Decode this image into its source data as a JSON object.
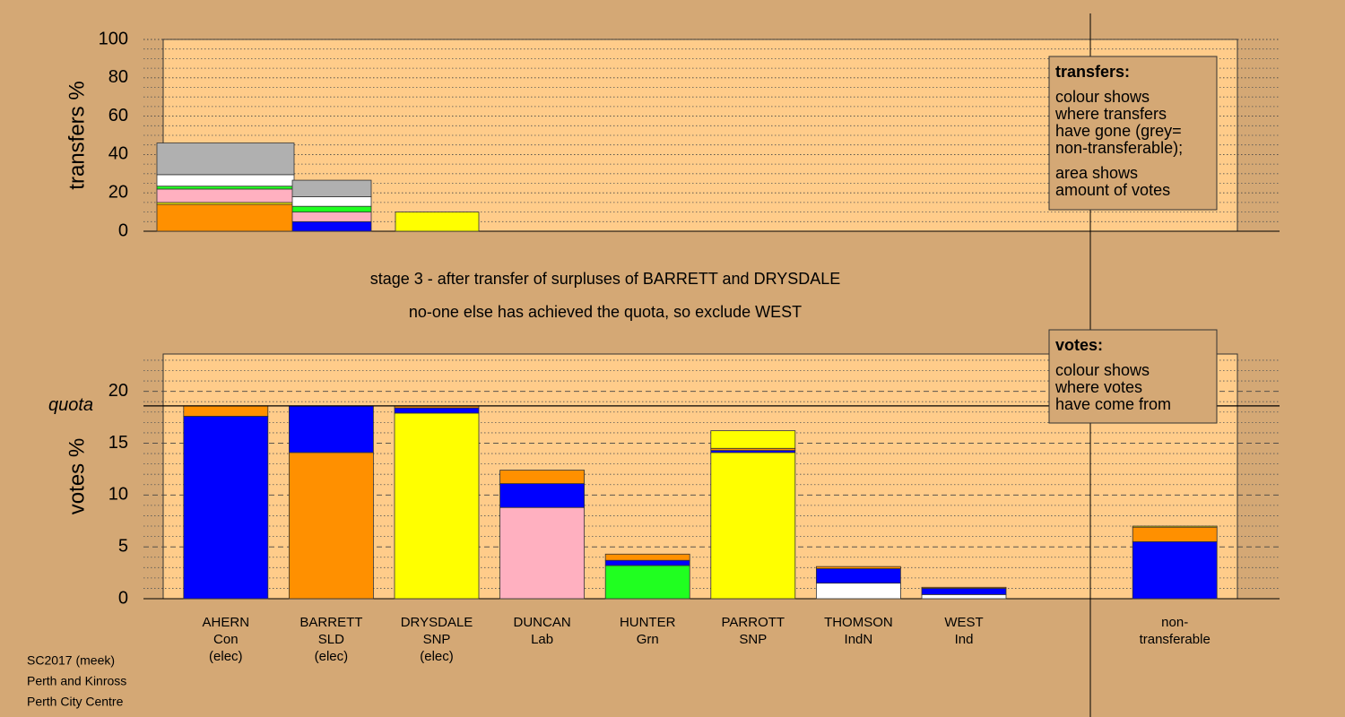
{
  "title_lines": [
    "stage 3 - after transfer of surpluses of BARRETT and DRYSDALE",
    "no-one else has achieved the quota, so exclude WEST"
  ],
  "transfers_note": {
    "heading": "transfers:",
    "paragraphs": [
      [
        "colour shows",
        "where transfers",
        "have gone (grey=",
        "non-transferable);"
      ],
      [
        "area shows",
        "amount of votes"
      ]
    ]
  },
  "votes_note": {
    "heading": "votes:",
    "paragraphs": [
      [
        "colour shows",
        "where votes",
        "have come from"
      ]
    ]
  },
  "footer": [
    "SC2017 (meek)",
    "Perth and Kinross",
    "Perth City Centre"
  ],
  "chart_data": [
    {
      "type": "bar",
      "stacked": true,
      "ylabel": "transfers %",
      "ylim": [
        0,
        100
      ],
      "yticks": [
        0,
        20,
        40,
        60,
        80,
        100
      ],
      "minor_yticks": [
        5,
        10,
        15,
        25,
        30,
        35,
        45,
        50,
        55,
        65,
        70,
        75,
        85,
        90,
        95
      ],
      "series": [
        {
          "color": "#0000ff",
          "values": [
            0,
            5,
            0
          ]
        },
        {
          "color": "#ff9000",
          "values": [
            14,
            0,
            0
          ]
        },
        {
          "color": "#ffff00",
          "values": [
            1,
            0,
            10
          ]
        },
        {
          "color": "#ffb0c0",
          "values": [
            7,
            5,
            0
          ]
        },
        {
          "color": "#20ff20",
          "values": [
            1.5,
            3,
            0
          ]
        },
        {
          "color": "#ffffff",
          "values": [
            6,
            5,
            0
          ]
        },
        {
          "color": "#b0b0b0",
          "values": [
            16.5,
            8.6,
            0
          ]
        }
      ]
    },
    {
      "type": "bar",
      "stacked": true,
      "ylabel": "votes %",
      "categories": [
        [
          "AHERN",
          "Con",
          "(elec)"
        ],
        [
          "BARRETT",
          "SLD",
          "(elec)"
        ],
        [
          "DRYSDALE",
          "SNP",
          "(elec)"
        ],
        [
          "DUNCAN",
          "Lab"
        ],
        [
          "HUNTER",
          "Grn"
        ],
        [
          "PARROTT",
          "SNP"
        ],
        [
          "THOMSON",
          "IndN"
        ],
        [
          "WEST",
          "Ind"
        ],
        null,
        [
          "non-",
          "transferable"
        ]
      ],
      "ylim": [
        0,
        23.6
      ],
      "yticks": [
        0,
        5,
        10,
        15,
        20
      ],
      "minor_yticks": [
        1,
        2,
        3,
        4,
        6,
        7,
        8,
        9,
        11,
        12,
        13,
        14,
        16,
        17,
        18,
        19,
        21,
        22,
        23
      ],
      "quota": 18.6,
      "quota_label": "quota",
      "series": [
        {
          "colors": [
            "#0000ff",
            "#ff9000",
            "#ffff00",
            "#ffb0c0",
            "#20ff20",
            "#ffff00",
            "#ffffff",
            "#ffffff",
            null,
            null
          ],
          "values": [
            17.6,
            14.1,
            17.9,
            8.8,
            3.2,
            14.1,
            1.5,
            0.4,
            null,
            null
          ]
        },
        {
          "color": "#0000ff",
          "values": [
            0,
            4.5,
            0.5,
            2.3,
            0.5,
            0.2,
            1.4,
            0.6,
            null,
            5.5
          ]
        },
        {
          "color": "#ff9000",
          "values": [
            1.0,
            0,
            0.2,
            1.3,
            0.6,
            0.2,
            0.2,
            0.1,
            null,
            1.4
          ]
        },
        {
          "color": "#ffff00",
          "values": [
            0,
            0,
            0,
            0,
            0,
            1.7,
            0,
            0,
            null,
            0.1
          ]
        }
      ]
    }
  ]
}
